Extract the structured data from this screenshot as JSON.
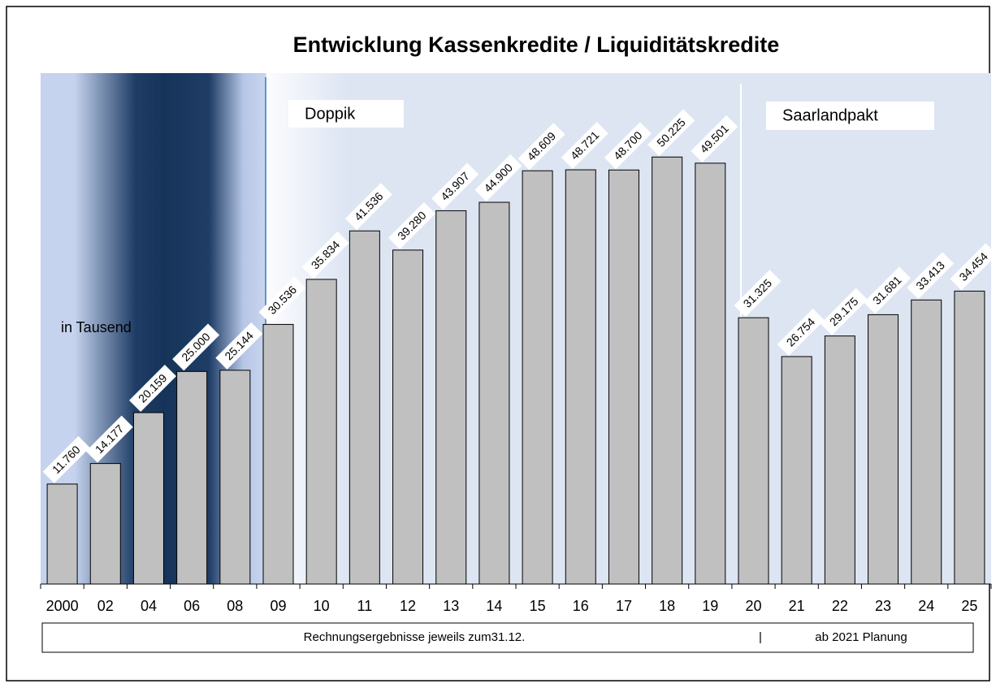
{
  "chart_data": {
    "type": "bar",
    "title": "Entwicklung Kassenkredite / Liquiditätskredite",
    "categories": [
      "2000",
      "02",
      "04",
      "06",
      "08",
      "09",
      "10",
      "11",
      "12",
      "13",
      "14",
      "15",
      "16",
      "17",
      "18",
      "19",
      "20",
      "21",
      "22",
      "23",
      "24",
      "25"
    ],
    "values": [
      11760,
      14177,
      20159,
      25000,
      25144,
      30536,
      35834,
      41536,
      39280,
      43907,
      44900,
      48609,
      48721,
      48700,
      50225,
      49501,
      31325,
      26754,
      29175,
      31681,
      33413,
      34454
    ],
    "value_labels": [
      "11.760",
      "14.177",
      "20.159",
      "25.000",
      "25.144",
      "30.536",
      "35.834",
      "41.536",
      "39.280",
      "43.907",
      "44.900",
      "48.609",
      "48.721",
      "48.700",
      "50.225",
      "49.501",
      "31.325",
      "26.754",
      "29.175",
      "31.681",
      "33.413",
      "34.454"
    ],
    "color": "#c0c0c0",
    "ylim": [
      0,
      60000
    ],
    "annotations": [
      "Doppik",
      "Saarlandpakt",
      "in Tausend"
    ],
    "footer": [
      "Rechnungsergebnisse  jeweils zum31.12.",
      "|",
      "ab 2021 Planung"
    ]
  }
}
